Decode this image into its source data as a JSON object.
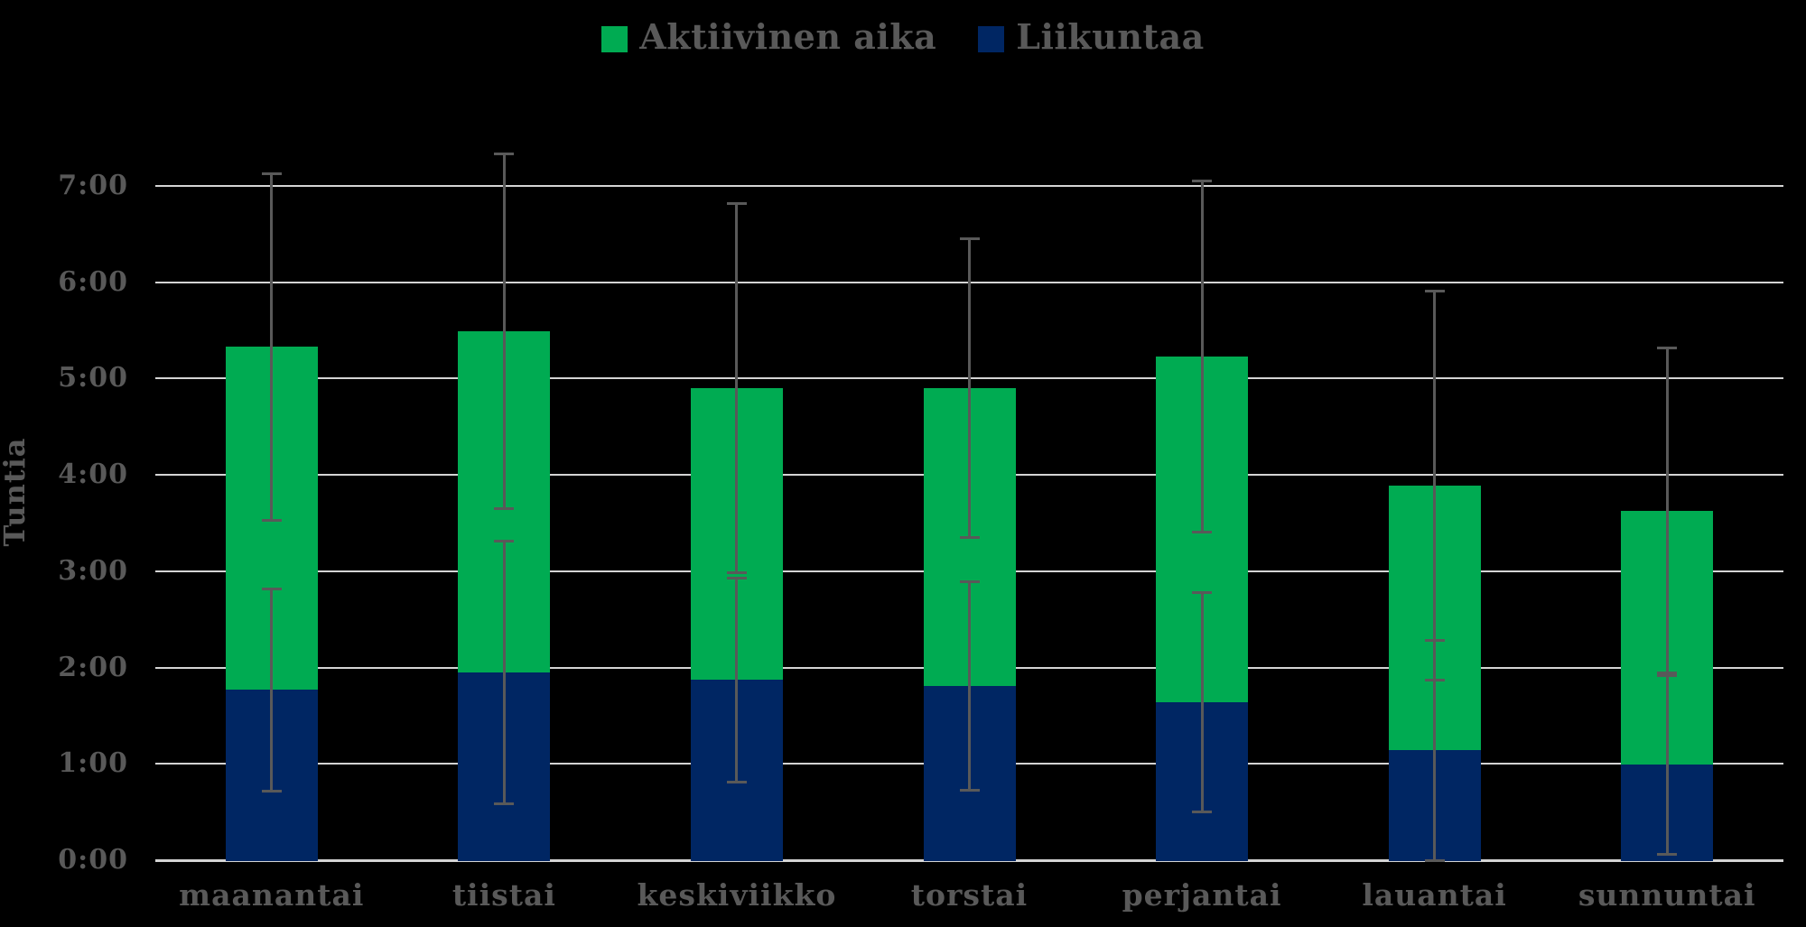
{
  "window": {
    "background": "#000000"
  },
  "legend": {
    "items": [
      {
        "label": "Aktiivinen aika",
        "color": "#00AB52"
      },
      {
        "label": "Liikuntaa",
        "color": "#002663"
      }
    ]
  },
  "axes": {
    "y_title": "Tuntia",
    "y_tick_labels": [
      "0:00",
      "1:00",
      "2:00",
      "3:00",
      "4:00",
      "5:00",
      "6:00",
      "7:00"
    ],
    "x_tick_labels": [
      "maanantai",
      "tiistai",
      "keskiviikko",
      "torstai",
      "perjantai",
      "lauantai",
      "sunnuntai"
    ]
  },
  "chart_data": {
    "type": "bar",
    "stacked": true,
    "orientation": "vertical",
    "title": "",
    "xlabel": "",
    "ylabel": "Tuntia",
    "unit": "hours",
    "categories": [
      "maanantai",
      "tiistai",
      "keskiviikko",
      "torstai",
      "perjantai",
      "lauantai",
      "sunnuntai"
    ],
    "series": [
      {
        "name": "Liikuntaa",
        "color": "#002663",
        "stack_order": "bottom",
        "values_hours": [
          1.77,
          1.95,
          1.87,
          1.81,
          1.64,
          1.14,
          0.99
        ],
        "values_hhmm": [
          "1:46",
          "1:57",
          "1:52",
          "1:49",
          "1:38",
          "1:08",
          "0:59"
        ],
        "error_hours": [
          1.05,
          1.36,
          1.06,
          1.08,
          1.14,
          1.14,
          0.93
        ]
      },
      {
        "name": "Aktiivinen aika",
        "color": "#00AB52",
        "stack_order": "top",
        "values_hours": [
          3.56,
          3.54,
          3.03,
          3.09,
          3.59,
          2.75,
          2.64
        ],
        "values_hhmm": [
          "3:34",
          "3:32",
          "3:02",
          "3:05",
          "3:35",
          "2:45",
          "2:38"
        ],
        "error_hours": [
          1.8,
          1.84,
          1.92,
          1.55,
          1.82,
          2.02,
          1.69
        ]
      }
    ],
    "stack_totals_hours": [
      5.33,
      5.49,
      4.9,
      4.9,
      5.23,
      3.89,
      3.63
    ],
    "stack_totals_hhmm": [
      "5:20",
      "5:29",
      "4:54",
      "4:54",
      "5:14",
      "3:53",
      "3:38"
    ],
    "error_bars": {
      "color": "#595959",
      "style": "vertical line with end caps",
      "placement": "one at top of Liikuntaa segment, one at stacked total"
    },
    "y_ticks_hours": [
      0,
      1,
      2,
      3,
      4,
      5,
      6,
      7
    ],
    "y_tick_labels": [
      "0:00",
      "1:00",
      "2:00",
      "3:00",
      "4:00",
      "5:00",
      "6:00",
      "7:00"
    ],
    "ylim_hours": [
      0,
      7.6
    ],
    "grid": true,
    "gridline_color": "#D4D4D4",
    "tick_label_color": "#595959",
    "legend_position": "top-center",
    "background": "#000000"
  },
  "colors": {
    "background": "#000000",
    "text": "#595959",
    "gridline": "#D4D4D4",
    "error_bar": "#595959",
    "green": "#00AB52",
    "navy": "#002663"
  }
}
